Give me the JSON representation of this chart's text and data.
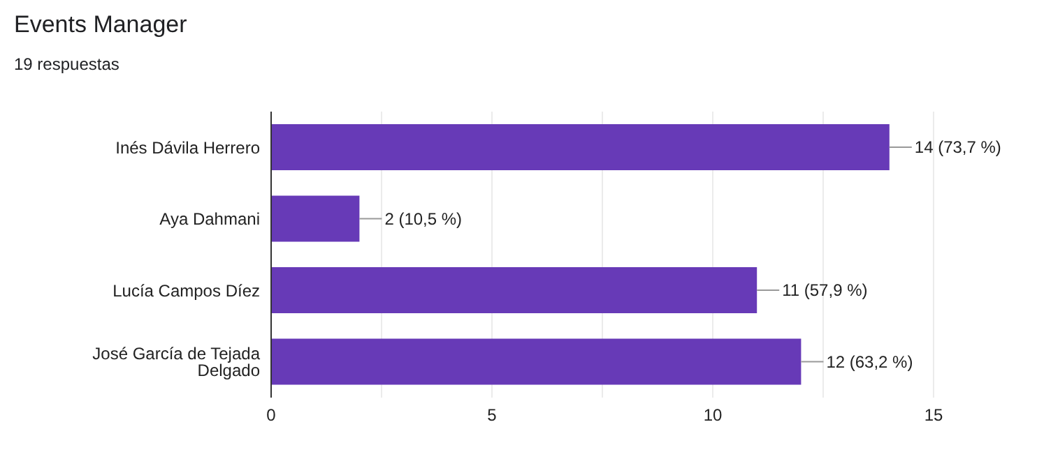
{
  "chart_data": {
    "type": "bar",
    "orientation": "horizontal",
    "title": "Events Manager",
    "subtitle": "19 respuestas",
    "categories": [
      "Inés Dávila Herrero",
      "Aya Dahmani",
      "Lucía Campos Díez",
      "José García de Tejada Delgado"
    ],
    "values": [
      14,
      2,
      11,
      12
    ],
    "value_labels": [
      "14 (73,7 %)",
      "2 (10,5 %)",
      "11 (57,9 %)",
      "12 (63,2 %)"
    ],
    "color": "#673ab7",
    "xlim": [
      0,
      15
    ],
    "xticks": [
      0,
      {
        "value": 2.5,
        "label": null
      },
      5,
      {
        "value": 7.5,
        "label": null
      },
      10,
      {
        "value": 12.5,
        "label": null
      },
      15
    ],
    "grid": "x",
    "legend": false
  }
}
